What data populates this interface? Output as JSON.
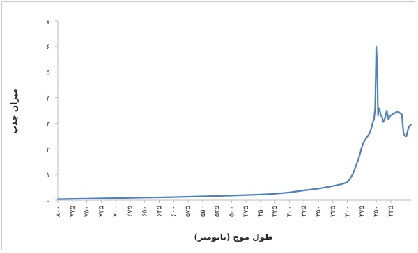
{
  "chart_data": {
    "type": "line",
    "title": "",
    "xlabel": "طول موج (نانومتر)",
    "ylabel": "میزان جذب",
    "xlim": [
      800,
      190
    ],
    "ylim": [
      0,
      7
    ],
    "grid": false,
    "legend": "none",
    "y_ticks": [
      0,
      1,
      2,
      3,
      4,
      5,
      6,
      7
    ],
    "y_tick_labels": [
      "۰",
      "۱",
      "۲",
      "۳",
      "۴",
      "۵",
      "۶",
      "۷"
    ],
    "x_ticks": [
      800,
      775,
      750,
      725,
      700,
      675,
      650,
      625,
      600,
      575,
      550,
      525,
      500,
      475,
      450,
      425,
      400,
      375,
      350,
      325,
      300,
      275,
      250,
      225
    ],
    "x_tick_labels": [
      "۸۰۰",
      "۷۷۵",
      "۷۵۰",
      "۷۲۵",
      "۷۰۰",
      "۶۷۵",
      "۶۵۰",
      "۶۲۵",
      "۶۰۰",
      "۵۷۵",
      "۵۵۰",
      "۵۲۵",
      "۵۰۰",
      "۴۷۵",
      "۴۵۰",
      "۴۲۵",
      "۴۰۰",
      "۳۷۵",
      "۳۵۰",
      "۳۲۵",
      "۳۰۰",
      "۲۷۵",
      "۲۵۰",
      "۲۲۵"
    ],
    "line_color": "#4f81bd",
    "series": [
      {
        "x": [
          800,
          750,
          700,
          650,
          600,
          550,
          500,
          450,
          425,
          400,
          375,
          350,
          325,
          310,
          300,
          295,
          290,
          285,
          280,
          276,
          272,
          268,
          265,
          262,
          258,
          256,
          254,
          252,
          250,
          249,
          248,
          247,
          246,
          244,
          242,
          240,
          238,
          235,
          232,
          229,
          226,
          222,
          218,
          215,
          212,
          209,
          206,
          203,
          200,
          198,
          196,
          194,
          192,
          190
        ],
        "y": [
          0.04,
          0.06,
          0.08,
          0.1,
          0.12,
          0.15,
          0.18,
          0.22,
          0.25,
          0.3,
          0.38,
          0.45,
          0.55,
          0.62,
          0.7,
          0.85,
          1.05,
          1.35,
          1.65,
          2.0,
          2.25,
          2.4,
          2.5,
          2.6,
          2.85,
          3.05,
          3.15,
          3.6,
          6.0,
          5.5,
          4.6,
          3.3,
          3.6,
          3.5,
          3.3,
          3.25,
          3.05,
          3.2,
          3.5,
          3.15,
          3.3,
          3.35,
          3.4,
          3.45,
          3.45,
          3.4,
          3.35,
          2.6,
          2.5,
          2.5,
          2.7,
          2.85,
          2.9,
          2.95
        ]
      }
    ]
  }
}
